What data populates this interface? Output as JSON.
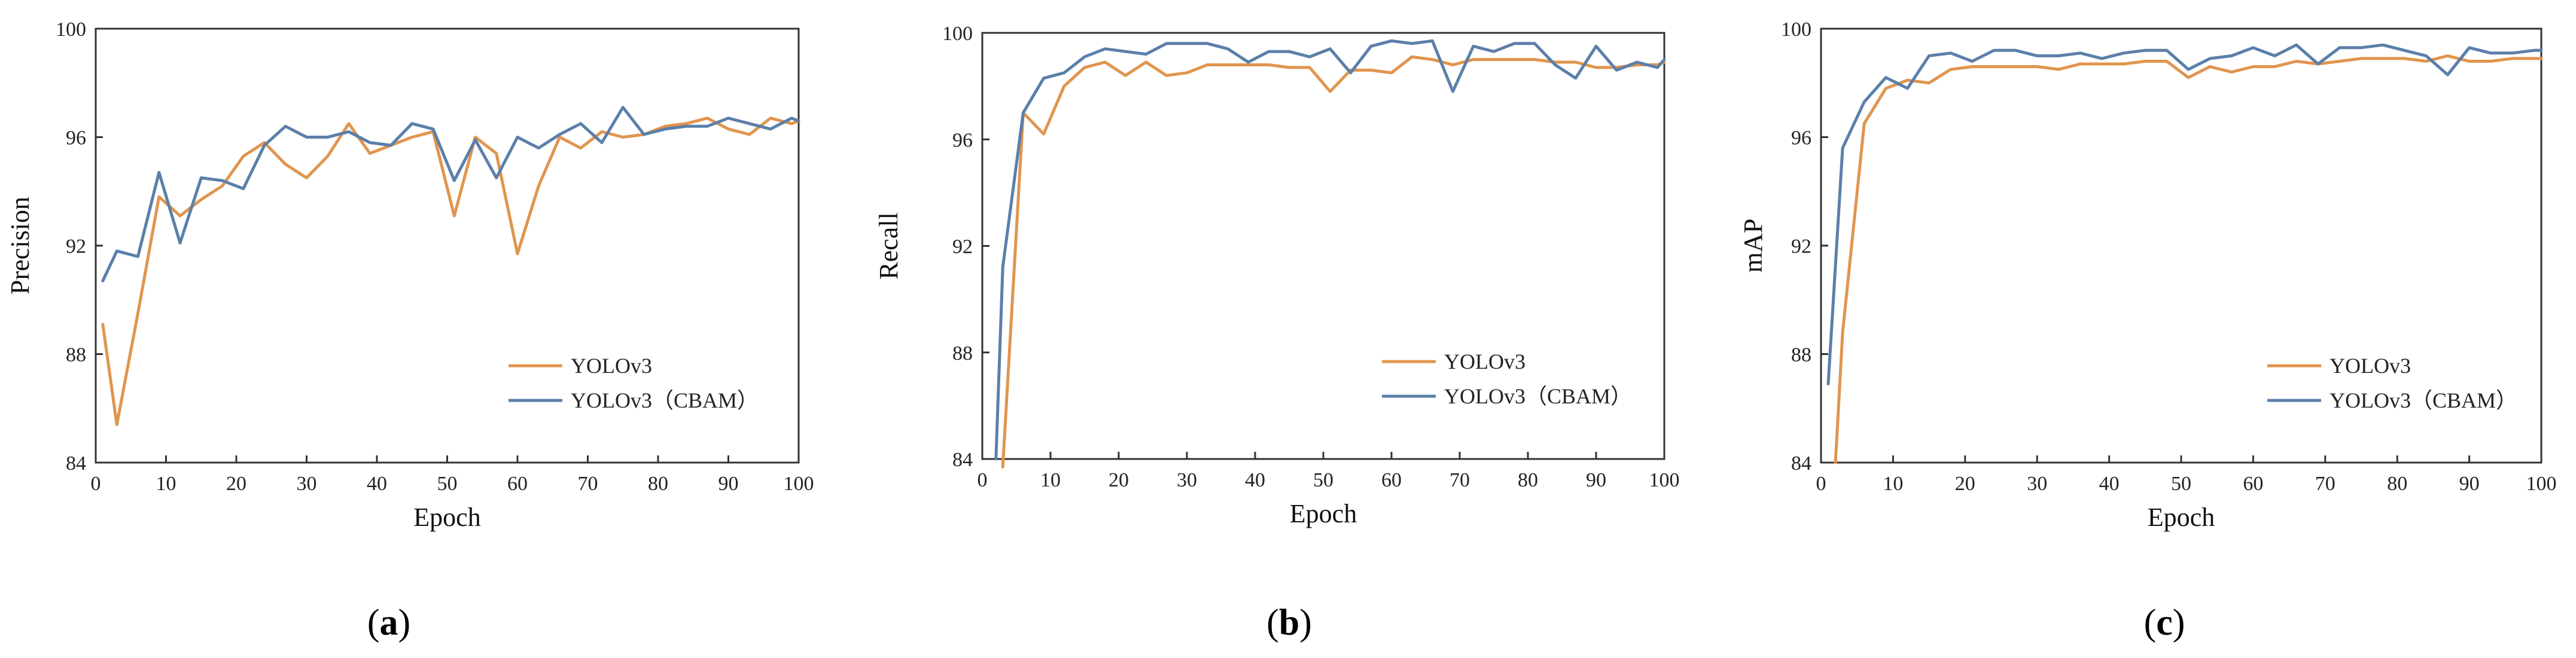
{
  "colors": {
    "yolov3": "#e0954e",
    "yolov3_cbam": "#5b7faa"
  },
  "chart_data": [
    {
      "type": "line",
      "panel": "a",
      "caption": {
        "open": "(",
        "letter": "a",
        "close": ")"
      },
      "xlabel": "Epoch",
      "ylabel": "Precision",
      "xlim": [
        0,
        100
      ],
      "ylim": [
        84,
        100
      ],
      "xticks": [
        0,
        10,
        20,
        30,
        40,
        50,
        60,
        70,
        80,
        90,
        100
      ],
      "yticks": [
        84,
        88,
        92,
        96,
        100
      ],
      "legend": {
        "position": "lower-right",
        "entries": [
          "YOLOv3",
          "YOLOv3（CBAM）"
        ]
      },
      "series": [
        {
          "name": "YOLOv3",
          "color": "#e0954e",
          "x": [
            1,
            3,
            6,
            9,
            12,
            15,
            18,
            21,
            24,
            27,
            30,
            33,
            36,
            39,
            42,
            45,
            48,
            51,
            54,
            57,
            60,
            63,
            66,
            69,
            72,
            75,
            78,
            81,
            84,
            87,
            90,
            93,
            96,
            99,
            100
          ],
          "y": [
            89.1,
            85.4,
            89.5,
            93.8,
            93.1,
            93.7,
            94.2,
            95.3,
            95.8,
            95.0,
            94.5,
            95.3,
            96.5,
            95.4,
            95.7,
            96.0,
            96.2,
            93.1,
            96.0,
            95.4,
            91.7,
            94.2,
            96.0,
            95.6,
            96.2,
            96.0,
            96.1,
            96.4,
            96.5,
            96.7,
            96.3,
            96.1,
            96.7,
            96.5,
            96.6
          ]
        },
        {
          "name": "YOLOv3（CBAM）",
          "color": "#5b7faa",
          "x": [
            1,
            3,
            6,
            9,
            12,
            15,
            18,
            21,
            24,
            27,
            30,
            33,
            36,
            39,
            42,
            45,
            48,
            51,
            54,
            57,
            60,
            63,
            66,
            69,
            72,
            75,
            78,
            81,
            84,
            87,
            90,
            93,
            96,
            99,
            100
          ],
          "y": [
            90.7,
            91.8,
            91.6,
            94.7,
            92.1,
            94.5,
            94.4,
            94.1,
            95.7,
            96.4,
            96.0,
            96.0,
            96.2,
            95.8,
            95.7,
            96.5,
            96.3,
            94.4,
            95.9,
            94.5,
            96.0,
            95.6,
            96.1,
            96.5,
            95.8,
            97.1,
            96.1,
            96.3,
            96.4,
            96.4,
            96.7,
            96.5,
            96.3,
            96.7,
            96.6
          ]
        }
      ]
    },
    {
      "type": "line",
      "panel": "b",
      "caption": {
        "open": "(",
        "letter": "b",
        "close": ")"
      },
      "xlabel": "Epoch",
      "ylabel": "Recall",
      "xlim": [
        0,
        100
      ],
      "ylim": [
        84,
        100
      ],
      "xticks": [
        0,
        10,
        20,
        30,
        40,
        50,
        60,
        70,
        80,
        90,
        100
      ],
      "yticks": [
        84,
        88,
        92,
        96,
        100
      ],
      "legend": {
        "position": "lower-right",
        "entries": [
          "YOLOv3",
          "YOLOv3（CBAM）"
        ]
      },
      "series": [
        {
          "name": "YOLOv3",
          "color": "#e0954e",
          "x": [
            3,
            6,
            9,
            12,
            15,
            18,
            21,
            24,
            27,
            30,
            33,
            36,
            39,
            42,
            45,
            48,
            51,
            54,
            57,
            60,
            63,
            66,
            69,
            72,
            75,
            78,
            81,
            84,
            87,
            90,
            93,
            96,
            99,
            100
          ],
          "y": [
            83.7,
            97.0,
            96.2,
            98.0,
            98.7,
            98.9,
            98.4,
            98.9,
            98.4,
            98.5,
            98.8,
            98.8,
            98.8,
            98.8,
            98.7,
            98.7,
            97.8,
            98.6,
            98.6,
            98.5,
            99.1,
            99.0,
            98.8,
            99.0,
            99.0,
            99.0,
            99.0,
            98.9,
            98.9,
            98.7,
            98.7,
            98.8,
            98.8,
            98.9
          ]
        },
        {
          "name": "YOLOv3（CBAM）",
          "color": "#5b7faa",
          "x": [
            2,
            3,
            6,
            9,
            12,
            15,
            18,
            21,
            24,
            27,
            30,
            33,
            36,
            39,
            42,
            45,
            48,
            51,
            54,
            57,
            60,
            63,
            66,
            69,
            72,
            75,
            78,
            81,
            84,
            87,
            90,
            93,
            96,
            99,
            100
          ],
          "y": [
            84.0,
            91.2,
            97.0,
            98.3,
            98.5,
            99.1,
            99.4,
            99.3,
            99.2,
            99.6,
            99.6,
            99.6,
            99.4,
            98.9,
            99.3,
            99.3,
            99.1,
            99.4,
            98.5,
            99.5,
            99.7,
            99.6,
            99.7,
            97.8,
            99.5,
            99.3,
            99.6,
            99.6,
            98.8,
            98.3,
            99.5,
            98.6,
            98.9,
            98.7,
            99.0
          ]
        }
      ]
    },
    {
      "type": "line",
      "panel": "c",
      "caption": {
        "open": "(",
        "letter": "c",
        "close": ")"
      },
      "xlabel": "Epoch",
      "ylabel": "mAP",
      "xlim": [
        0,
        100
      ],
      "ylim": [
        84,
        100
      ],
      "xticks": [
        0,
        10,
        20,
        30,
        40,
        50,
        60,
        70,
        80,
        90,
        100
      ],
      "yticks": [
        84,
        88,
        92,
        96,
        100
      ],
      "legend": {
        "position": "lower-right",
        "entries": [
          "YOLOv3",
          "YOLOv3（CBAM）"
        ]
      },
      "series": [
        {
          "name": "YOLOv3",
          "color": "#e0954e",
          "x": [
            2,
            3,
            6,
            9,
            12,
            15,
            18,
            21,
            24,
            27,
            30,
            33,
            36,
            39,
            42,
            45,
            48,
            51,
            54,
            57,
            60,
            63,
            66,
            69,
            72,
            75,
            78,
            81,
            84,
            87,
            90,
            93,
            96,
            99,
            100
          ],
          "y": [
            84.0,
            88.8,
            96.5,
            97.8,
            98.1,
            98.0,
            98.5,
            98.6,
            98.6,
            98.6,
            98.6,
            98.5,
            98.7,
            98.7,
            98.7,
            98.8,
            98.8,
            98.2,
            98.6,
            98.4,
            98.6,
            98.6,
            98.8,
            98.7,
            98.8,
            98.9,
            98.9,
            98.9,
            98.8,
            99.0,
            98.8,
            98.8,
            98.9,
            98.9,
            98.9
          ]
        },
        {
          "name": "YOLOv3（CBAM）",
          "color": "#5b7faa",
          "x": [
            1,
            3,
            6,
            9,
            12,
            15,
            18,
            21,
            24,
            27,
            30,
            33,
            36,
            39,
            42,
            45,
            48,
            51,
            54,
            57,
            60,
            63,
            66,
            69,
            72,
            75,
            78,
            81,
            84,
            87,
            90,
            93,
            96,
            99,
            100
          ],
          "y": [
            86.9,
            95.6,
            97.3,
            98.2,
            97.8,
            99.0,
            99.1,
            98.8,
            99.2,
            99.2,
            99.0,
            99.0,
            99.1,
            98.9,
            99.1,
            99.2,
            99.2,
            98.5,
            98.9,
            99.0,
            99.3,
            99.0,
            99.4,
            98.7,
            99.3,
            99.3,
            99.4,
            99.2,
            99.0,
            98.3,
            99.3,
            99.1,
            99.1,
            99.2,
            99.2
          ]
        }
      ]
    }
  ]
}
